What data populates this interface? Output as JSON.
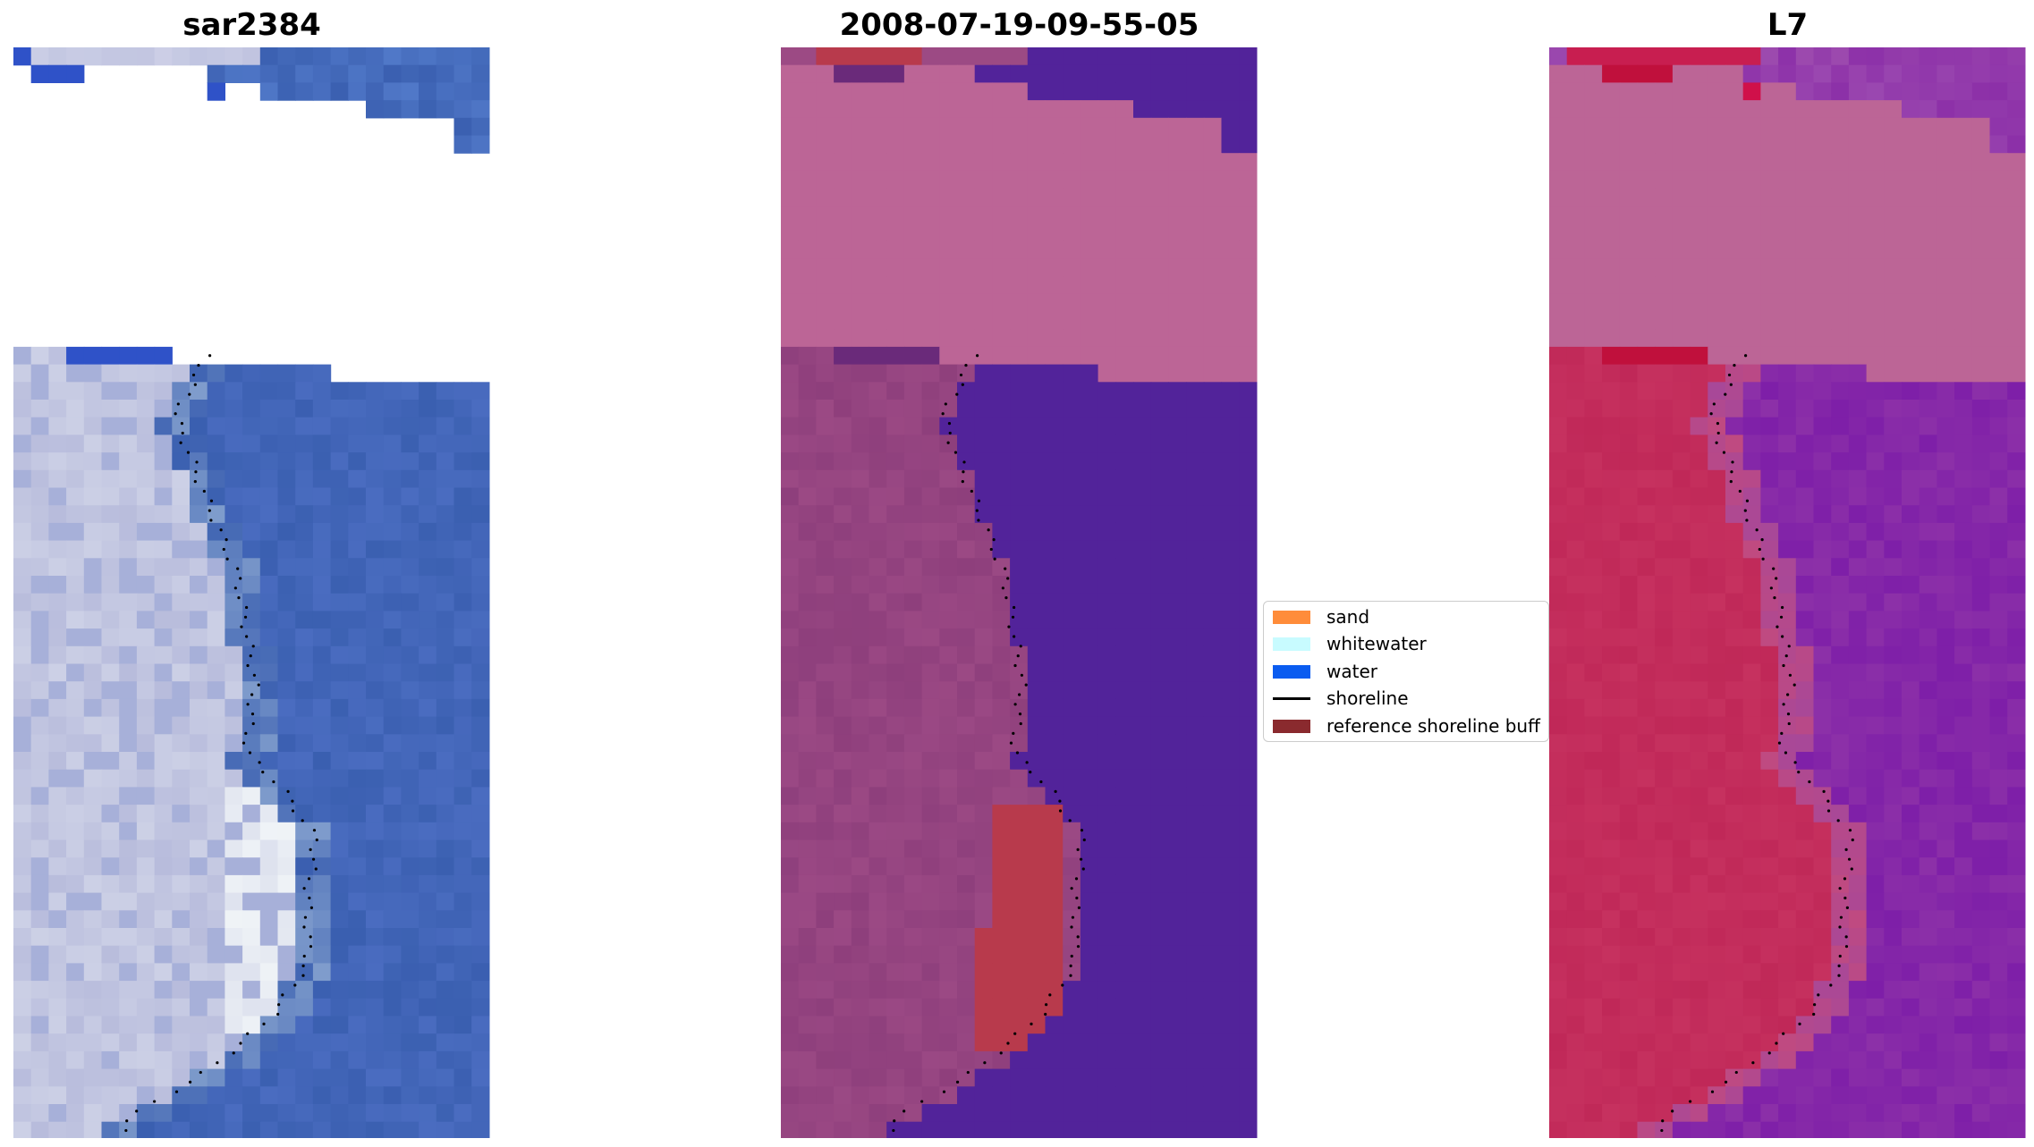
{
  "figure": {
    "panels": [
      {
        "id": "rgb",
        "title": "sar2384"
      },
      {
        "id": "classified",
        "title": "2008-07-19-09-55-05"
      },
      {
        "id": "index",
        "title": "L7"
      }
    ]
  },
  "legend": {
    "items": [
      {
        "label": "sand",
        "kind": "patch",
        "color": "#ff8c3a"
      },
      {
        "label": "whitewater",
        "kind": "patch",
        "color": "#c8fbff"
      },
      {
        "label": "water",
        "kind": "patch",
        "color": "#0a5cf0"
      },
      {
        "label": "shoreline",
        "kind": "line",
        "color": "#000000"
      },
      {
        "label": "reference shoreline buff",
        "kind": "patch",
        "color": "#8a2a2e"
      }
    ]
  },
  "colors": {
    "rgb_water": "#3a5fb0",
    "rgb_sand": "#b8bcdc",
    "rgb_bright": "#f2f6f8",
    "rgb_deep_water": "#2f52c8",
    "class_land": "#8e3f7c",
    "class_water": "#52239a",
    "class_nodata": "#bc6596",
    "class_buffer": "#b83a4c",
    "index_land": "#c02858",
    "index_water": "#8c30a8",
    "index_nodata": "#bc6596",
    "shoreline_dots": "#000000"
  }
}
